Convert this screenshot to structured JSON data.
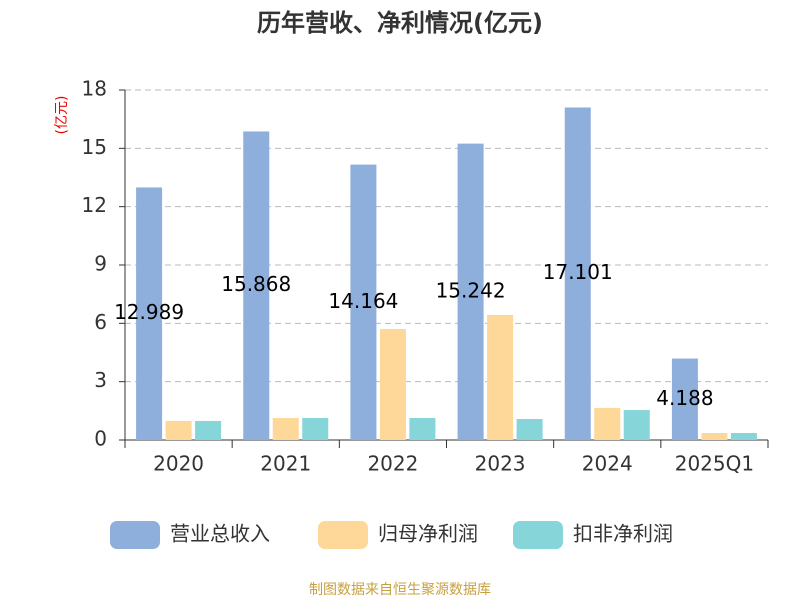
{
  "chart_data": {
    "type": "bar",
    "title": "历年营收、净利情况(亿元)",
    "y_label": "(亿元)",
    "source": "制图数据来自恒生聚源数据库",
    "categories": [
      "2020",
      "2021",
      "2022",
      "2023",
      "2024",
      "2025Q1"
    ],
    "series": [
      {
        "name": "营业总收入",
        "color": "#8eaedb",
        "values": [
          12.989,
          15.868,
          14.164,
          15.242,
          17.101,
          4.188
        ],
        "labels": true
      },
      {
        "name": "归母净利润",
        "color": "#fdd898",
        "values": [
          0.98,
          1.13,
          5.71,
          6.43,
          1.65,
          0.36
        ]
      },
      {
        "name": "扣非净利润",
        "color": "#86d5d8",
        "values": [
          0.98,
          1.13,
          1.13,
          1.08,
          1.54,
          0.36
        ]
      }
    ],
    "ylim": [
      0,
      18
    ],
    "yticks": [
      0,
      3,
      6,
      9,
      12,
      15,
      18
    ],
    "grid": true,
    "legend": "bottom"
  }
}
